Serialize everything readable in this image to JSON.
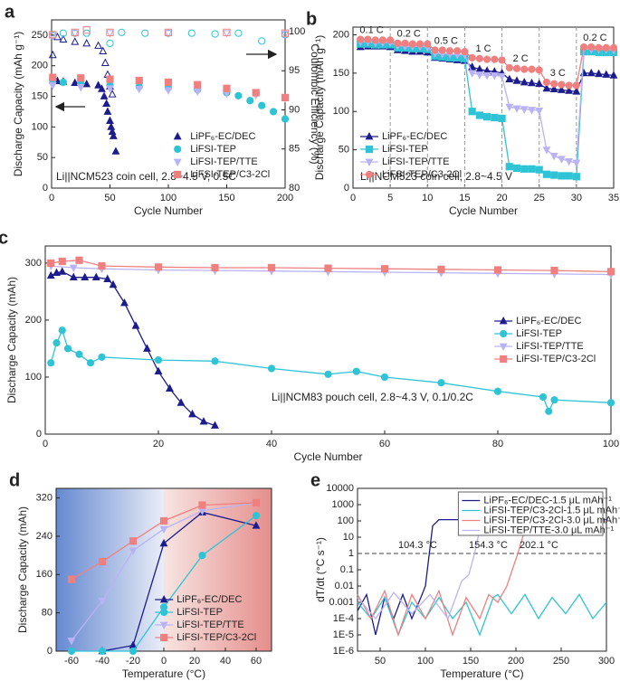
{
  "chart_data": [
    {
      "type": "scatter",
      "label": "a",
      "xlabel": "Cycle Number",
      "ylabel": "Discharge Capacity (mAh g⁻¹)",
      "y2label": "Coulombic Efficiency (%)",
      "xlim": [
        0,
        200
      ],
      "xticks": [
        0,
        50,
        100,
        150,
        200
      ],
      "ylim": [
        0,
        275
      ],
      "yticks": [
        0,
        50,
        100,
        150,
        200,
        250
      ],
      "y2lim": [
        80,
        101.5
      ],
      "y2ticks": [
        80,
        85,
        90,
        95,
        100
      ],
      "lines": false,
      "legend": "lower right",
      "annotations": [
        "Li||NCM523 coin cell, 2.8~4.5 V, 0.5C"
      ],
      "series": [
        {
          "name": "LiPF₆-EC/DEC",
          "color": "#1c1c8c",
          "marker": "triangle",
          "x": [
            1,
            5,
            10,
            20,
            30,
            40,
            43,
            45,
            47,
            48,
            50,
            51,
            52,
            53,
            55
          ],
          "values": [
            176,
            175,
            174,
            172,
            170,
            168,
            162,
            150,
            138,
            125,
            110,
            100,
            92,
            85,
            60
          ]
        },
        {
          "name": "LiFSI-TEP",
          "color": "#2ec4d6",
          "marker": "circle",
          "x": [
            1,
            10,
            25,
            50,
            75,
            100,
            125,
            150,
            160,
            170,
            180,
            190,
            200
          ],
          "values": [
            176,
            173,
            171,
            168,
            166,
            164,
            161,
            156,
            151,
            143,
            135,
            125,
            113
          ]
        },
        {
          "name": "LiFSI-TEP/TTE",
          "color": "#b9b3f5",
          "marker": "triangle-down",
          "x": [
            1,
            25,
            50,
            75,
            100,
            125,
            150,
            175,
            200
          ],
          "values": [
            168,
            165,
            163,
            162,
            160,
            158,
            155,
            152,
            147
          ]
        },
        {
          "name": "LiFSI-TEP/C3-2Cl",
          "color": "#f08080",
          "marker": "square",
          "x": [
            1,
            25,
            50,
            75,
            100,
            125,
            150,
            175,
            200
          ],
          "values": [
            181,
            180,
            178,
            176,
            173,
            169,
            163,
            156,
            148
          ]
        }
      ],
      "ce_series": [
        {
          "color": "#1c1c8c",
          "marker": "triangle",
          "open": true,
          "axis": "y2",
          "x": [
            1,
            5,
            10,
            20,
            30,
            40,
            44,
            46,
            48,
            50,
            52
          ],
          "values": [
            97,
            99.3,
            99,
            98.7,
            98.5,
            98.2,
            97.5,
            96,
            94.5,
            93,
            92
          ]
        },
        {
          "color": "#2ec4d6",
          "marker": "circle",
          "open": true,
          "axis": "y2",
          "x": [
            1,
            10,
            20,
            30,
            50,
            60,
            80,
            100,
            120,
            140,
            160,
            180,
            200
          ],
          "values": [
            99.5,
            99.8,
            99.8,
            99.8,
            98.5,
            99.9,
            99.8,
            99.8,
            99.8,
            99.7,
            99.8,
            98.8,
            99.6
          ]
        },
        {
          "color": "#b9b3f5",
          "marker": "triangle-down",
          "open": true,
          "axis": "y2",
          "x": [
            1,
            20,
            50,
            100,
            150,
            200
          ],
          "values": [
            99.5,
            99.8,
            99.8,
            99.8,
            99.8,
            99.7
          ]
        },
        {
          "color": "#f08080",
          "marker": "square",
          "open": true,
          "axis": "y2",
          "x": [
            1,
            20,
            30,
            50,
            100,
            150,
            200
          ],
          "values": [
            99.6,
            99.9,
            100.2,
            99.9,
            99.9,
            99.9,
            99.8
          ]
        }
      ]
    },
    {
      "type": "line",
      "label": "b",
      "xlabel": "Cycle Number",
      "ylabel": "Discharge Capacity (mAh g⁻¹)",
      "xlim": [
        0,
        35
      ],
      "xticks": [
        0,
        5,
        10,
        15,
        20,
        25,
        30,
        35
      ],
      "ylim": [
        0,
        210
      ],
      "yticks": [
        0,
        50,
        100,
        150,
        200
      ],
      "lines": true,
      "legend": "lower left",
      "dividers": [
        5,
        10,
        15,
        20,
        25,
        30
      ],
      "segment_labels": [
        "0.1 C",
        "0.2 C",
        "0.5 C",
        "1 C",
        "2 C",
        "3 C",
        "0.2 C"
      ],
      "annotations": [
        "Li||NCM523 coin cell, 2.8~4.5 V"
      ],
      "x": [
        1,
        2,
        3,
        4,
        5,
        6,
        7,
        8,
        9,
        10,
        11,
        12,
        13,
        14,
        15,
        16,
        17,
        18,
        19,
        20,
        21,
        22,
        23,
        24,
        25,
        26,
        27,
        28,
        29,
        30,
        31,
        32,
        33,
        34,
        35
      ],
      "series": [
        {
          "name": "LiPF₆-EC/DEC",
          "color": "#1c1c8c",
          "marker": "triangle",
          "values": [
            184,
            185,
            185,
            185,
            184,
            180,
            179,
            178,
            178,
            177,
            170,
            169,
            168,
            167,
            166,
            158,
            155,
            153,
            152,
            150,
            142,
            140,
            138,
            137,
            136,
            130,
            129,
            128,
            127,
            126,
            150,
            150,
            149,
            148,
            147
          ]
        },
        {
          "name": "LiFSI-TEP",
          "color": "#2ec4d6",
          "marker": "square",
          "values": [
            188,
            188,
            187,
            187,
            187,
            183,
            183,
            182,
            182,
            181,
            172,
            171,
            170,
            170,
            169,
            100,
            95,
            93,
            92,
            91,
            28,
            26,
            25,
            25,
            24,
            18,
            17,
            16,
            16,
            15,
            178,
            178,
            177,
            177,
            177
          ]
        },
        {
          "name": "LiFSI-TEP/TTE",
          "color": "#b9b3f5",
          "marker": "triangle-down",
          "values": [
            191,
            191,
            190,
            190,
            190,
            186,
            185,
            185,
            185,
            184,
            176,
            175,
            175,
            174,
            174,
            150,
            148,
            147,
            147,
            146,
            106,
            104,
            103,
            102,
            101,
            50,
            42,
            38,
            35,
            33,
            182,
            181,
            181,
            181,
            180
          ]
        },
        {
          "name": "LiFSI-TEP/C3-2Cl",
          "color": "#f08080",
          "marker": "circle",
          "values": [
            194,
            194,
            193,
            193,
            193,
            189,
            189,
            188,
            188,
            188,
            180,
            180,
            179,
            179,
            178,
            170,
            169,
            168,
            168,
            167,
            157,
            156,
            155,
            155,
            154,
            138,
            136,
            135,
            134,
            134,
            184,
            184,
            183,
            183,
            183
          ]
        }
      ]
    },
    {
      "type": "line",
      "label": "c",
      "xlabel": "Cycle Number",
      "ylabel": "Discharge Capacity (mAh)",
      "xlim": [
        0,
        100
      ],
      "xticks": [
        0,
        20,
        40,
        60,
        80,
        100
      ],
      "ylim": [
        0,
        330
      ],
      "yticks": [
        0,
        100,
        200,
        300
      ],
      "lines": true,
      "legend": "center right",
      "annotations": [
        "Li||NCM83 pouch cell, 2.8~4.3 V, 0.1/0.2C"
      ],
      "series": [
        {
          "name": "LiPF₆-EC/DEC",
          "color": "#1c1c8c",
          "marker": "triangle",
          "x": [
            1,
            2,
            3,
            5,
            7,
            9,
            11,
            12,
            14,
            16,
            18,
            20,
            22,
            24,
            26,
            28,
            30
          ],
          "values": [
            278,
            283,
            285,
            275,
            275,
            275,
            272,
            262,
            230,
            190,
            150,
            110,
            80,
            55,
            35,
            22,
            15
          ]
        },
        {
          "name": "LiFSI-TEP",
          "color": "#2ec4d6",
          "marker": "circle",
          "x": [
            1,
            2,
            3,
            4,
            6,
            8,
            10,
            20,
            30,
            40,
            50,
            55,
            60,
            70,
            80,
            88,
            89,
            90,
            100
          ],
          "values": [
            125,
            160,
            182,
            150,
            140,
            125,
            135,
            130,
            128,
            115,
            105,
            110,
            100,
            90,
            75,
            65,
            40,
            60,
            55
          ]
        },
        {
          "name": "LiFSI-TEP/TTE",
          "color": "#b9b3f5",
          "marker": "triangle-down",
          "x": [
            1,
            5,
            10,
            20,
            30,
            40,
            50,
            60,
            70,
            80,
            90,
            100
          ],
          "values": [
            295,
            292,
            290,
            288,
            287,
            286,
            285,
            284,
            283,
            282,
            281,
            280
          ]
        },
        {
          "name": "LiFSI-TEP/C3-2Cl",
          "color": "#f08080",
          "marker": "square",
          "x": [
            1,
            3,
            6,
            10,
            20,
            30,
            40,
            50,
            60,
            70,
            80,
            90,
            100
          ],
          "values": [
            300,
            303,
            305,
            295,
            293,
            292,
            292,
            291,
            290,
            289,
            288,
            287,
            285
          ]
        }
      ]
    },
    {
      "type": "line",
      "label": "d",
      "xlabel": "Temperature (°C)",
      "ylabel": "Discharge Capacity (mAh)",
      "xlim": [
        -70,
        70
      ],
      "xticks": [
        -60,
        -40,
        -20,
        0,
        20,
        40,
        60
      ],
      "ylim": [
        0,
        340
      ],
      "yticks": [
        0,
        80,
        160,
        240,
        320
      ],
      "lines": true,
      "legend": "lower right",
      "series": [
        {
          "name": "LiPF₆-EC/DEC",
          "color": "#1c1c8c",
          "marker": "triangle",
          "x": [
            -40,
            -20,
            0,
            25,
            60
          ],
          "values": [
            0,
            12,
            225,
            290,
            262
          ]
        },
        {
          "name": "LiFSI-TEP",
          "color": "#2ec4d6",
          "marker": "circle",
          "x": [
            -60,
            -40,
            -20,
            0,
            25,
            60
          ],
          "values": [
            0,
            0,
            0,
            92,
            200,
            283
          ]
        },
        {
          "name": "LiFSI-TEP/TTE",
          "color": "#b9b3f5",
          "marker": "triangle-down",
          "x": [
            -60,
            -40,
            -20,
            0,
            25,
            60
          ],
          "values": [
            22,
            105,
            210,
            255,
            293,
            310
          ]
        },
        {
          "name": "LiFSI-TEP/C3-2Cl",
          "color": "#f08080",
          "marker": "square",
          "x": [
            -60,
            -40,
            -20,
            0,
            25,
            60
          ],
          "values": [
            150,
            187,
            230,
            272,
            305,
            310
          ]
        }
      ]
    },
    {
      "type": "line",
      "label": "e",
      "xlabel": "Temperature (°C)",
      "ylabel": "dT/dt (°C s⁻¹)",
      "xlim": [
        25,
        300
      ],
      "xticks": [
        50,
        100,
        150,
        200,
        250,
        300
      ],
      "ylim": [
        1e-06,
        10000
      ],
      "log_y": true,
      "yticks": [
        {
          "value": 1e-06,
          "label": "1E-6"
        },
        {
          "value": 1e-05,
          "label": "1E-5"
        },
        {
          "value": 0.0001,
          "label": "1E-4"
        },
        0.001,
        0.01,
        0.1,
        1,
        10,
        100,
        1000,
        10000
      ],
      "lines": true,
      "legend": "upper right",
      "hline": 1,
      "annotations": [
        "104.3 °C",
        "154.3 °C",
        "202.1 °C"
      ],
      "series": [
        {
          "name": "LiPF₆-EC/DEC-1.5 μL mAh⁻¹",
          "color": "#1c1c8c",
          "x": [
            25,
            35,
            45,
            55,
            65,
            75,
            85,
            95,
            100,
            104.3,
            108,
            115,
            130,
            300
          ],
          "values": [
            0.0003,
            0.003,
            1e-05,
            0.002,
            0.0001,
            0.003,
            0.0001,
            0.002,
            0.01,
            1,
            50,
            120,
            120,
            120
          ]
        },
        {
          "name": "LiFSI-TEP/C3-2Cl-1.5 μL mAh⁻¹",
          "color": "#2ec4d6",
          "x": [
            25,
            40,
            55,
            70,
            85,
            100,
            115,
            130,
            145,
            160,
            175,
            180,
            195,
            210,
            225,
            240,
            255,
            270,
            285,
            300
          ],
          "values": [
            0.001,
            0.0001,
            0.002,
            1e-05,
            0.001,
            0.0001,
            0.002,
            0.0001,
            0.001,
            1e-05,
            0.002,
            0.003,
            0.0002,
            0.003,
            0.0001,
            0.002,
            0.0002,
            0.003,
            0.0001,
            0.001
          ]
        },
        {
          "name": "LiFSI-TEP/C3-2Cl-3.0 μL mAh⁻¹",
          "color": "#f08080",
          "x": [
            25,
            40,
            55,
            70,
            85,
            100,
            115,
            130,
            145,
            160,
            170,
            180,
            190,
            196,
            202.1,
            210,
            220,
            300
          ],
          "values": [
            0.003,
            0.0001,
            0.005,
            1e-05,
            0.003,
            0.0001,
            0.005,
            1e-05,
            0.002,
            0.0001,
            0.003,
            0.001,
            0.01,
            0.1,
            1,
            30,
            100,
            100
          ]
        },
        {
          "name": "LiFSI-TEP/TTE-3.0 μL mAh⁻¹",
          "color": "#b9b3f5",
          "x": [
            25,
            45,
            65,
            85,
            105,
            125,
            140,
            148,
            154.3,
            160,
            165,
            170,
            300
          ],
          "values": [
            0.002,
            0.0001,
            0.004,
            0.0002,
            0.003,
            0.0001,
            0.02,
            0.05,
            1,
            30,
            100,
            110,
            110
          ]
        }
      ]
    }
  ]
}
